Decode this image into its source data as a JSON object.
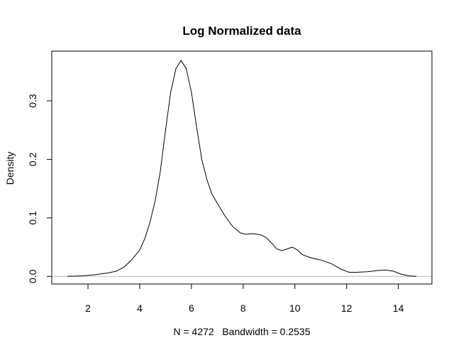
{
  "chart_data": {
    "type": "line",
    "title": "Log Normalized data",
    "xlabel": "N = 4272   Bandwidth = 0.2535",
    "ylabel": "Density",
    "xlim": [
      0.6,
      15.3
    ],
    "ylim": [
      -0.013,
      0.385
    ],
    "xticks": [
      2,
      4,
      6,
      8,
      10,
      12,
      14
    ],
    "yticks": [
      0.0,
      0.1,
      0.2,
      0.3
    ],
    "ytick_labels": [
      "0.0",
      "0.1",
      "0.2",
      "0.3"
    ],
    "baseline": 0,
    "grid": false,
    "series": [
      {
        "x": [
          1.2,
          1.8,
          2.3,
          2.8,
          3.1,
          3.4,
          3.7,
          4.0,
          4.2,
          4.4,
          4.6,
          4.8,
          5.0,
          5.2,
          5.4,
          5.6,
          5.8,
          6.0,
          6.2,
          6.4,
          6.6,
          6.8,
          7.0,
          7.3,
          7.6,
          7.9,
          8.1,
          8.4,
          8.7,
          8.9,
          9.1,
          9.3,
          9.5,
          9.7,
          9.9,
          10.1,
          10.3,
          10.6,
          11.0,
          11.4,
          11.8,
          12.1,
          12.4,
          12.8,
          13.2,
          13.5,
          13.8,
          14.1,
          14.4,
          14.7
        ],
        "y": [
          0.0,
          0.001,
          0.003,
          0.006,
          0.009,
          0.016,
          0.029,
          0.045,
          0.065,
          0.093,
          0.13,
          0.18,
          0.25,
          0.315,
          0.355,
          0.369,
          0.355,
          0.315,
          0.255,
          0.2,
          0.165,
          0.14,
          0.125,
          0.103,
          0.085,
          0.074,
          0.072,
          0.073,
          0.071,
          0.066,
          0.057,
          0.047,
          0.044,
          0.047,
          0.05,
          0.045,
          0.037,
          0.032,
          0.028,
          0.022,
          0.012,
          0.007,
          0.007,
          0.008,
          0.01,
          0.011,
          0.009,
          0.004,
          0.001,
          0.0
        ],
        "color": "#000000"
      }
    ]
  }
}
